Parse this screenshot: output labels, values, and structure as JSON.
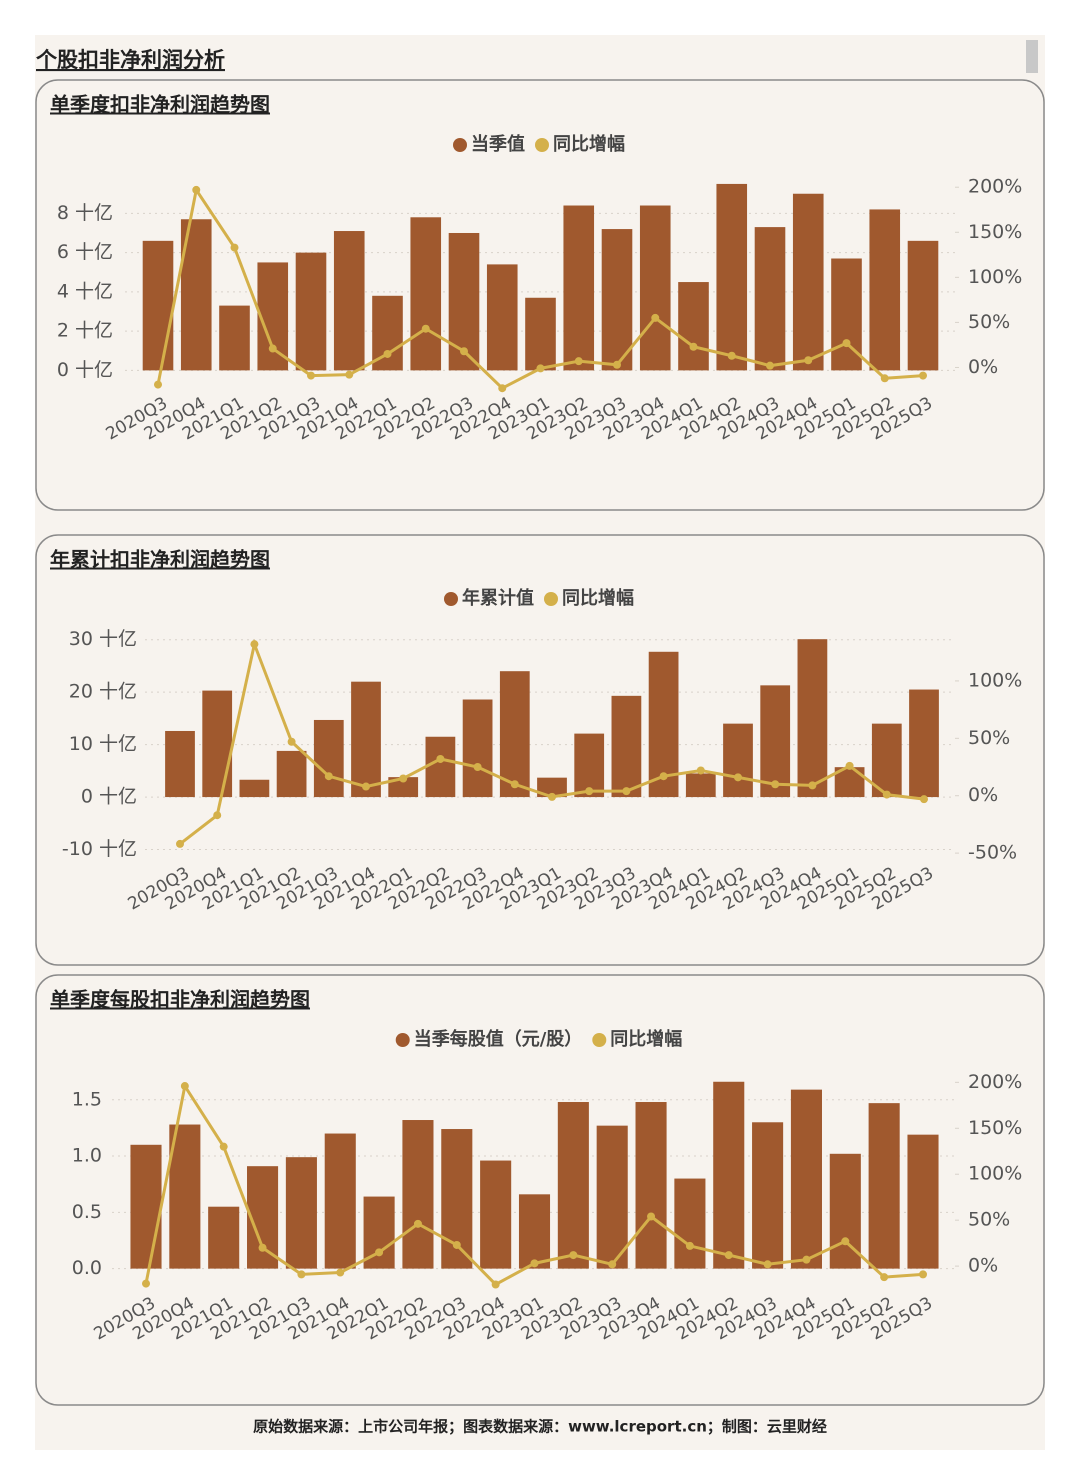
{
  "header": {
    "title": "个股扣非净利润分析"
  },
  "footer": "原始数据来源：上市公司年报；图表数据来源：www.lcreport.cn；制图：云里财经",
  "chart_data": [
    {
      "type": "bar",
      "title": "单季度扣非净利润趋势图",
      "categories": [
        "2020Q3",
        "2020Q4",
        "2021Q1",
        "2021Q2",
        "2021Q3",
        "2021Q4",
        "2022Q1",
        "2022Q2",
        "2022Q3",
        "2022Q4",
        "2023Q1",
        "2023Q2",
        "2023Q3",
        "2023Q4",
        "2024Q1",
        "2024Q2",
        "2024Q3",
        "2024Q4",
        "2025Q1",
        "2025Q2",
        "2025Q3"
      ],
      "series": [
        {
          "name": "当季值",
          "type": "bar",
          "color": "#a0592e",
          "values": [
            6.6,
            7.7,
            3.3,
            5.5,
            6.0,
            7.1,
            3.8,
            7.8,
            7.0,
            5.4,
            3.7,
            8.4,
            7.2,
            8.4,
            4.5,
            9.5,
            7.3,
            9.0,
            5.7,
            8.2,
            6.6
          ]
        },
        {
          "name": "同比增幅",
          "type": "line",
          "axis": "y2",
          "color": "#d4b04a",
          "values": [
            -19,
            197,
            133,
            21,
            -9,
            -8,
            15,
            43,
            18,
            -23,
            -1,
            7,
            3,
            55,
            23,
            13,
            2,
            8,
            27,
            -12,
            -9
          ]
        }
      ],
      "ylim": [
        -1,
        9.7
      ],
      "yticks": [
        {
          "value": 0,
          "label": "0 十亿"
        },
        {
          "value": 2,
          "label": "2 十亿"
        },
        {
          "value": 4,
          "label": "4 十亿"
        },
        {
          "value": 6,
          "label": "6 十亿"
        },
        {
          "value": 8,
          "label": "8 十亿"
        }
      ],
      "y2lim": [
        -25,
        208
      ],
      "y2ticks": [
        {
          "value": 0,
          "label": "0%"
        },
        {
          "value": 50,
          "label": "50%"
        },
        {
          "value": 100,
          "label": "100%"
        },
        {
          "value": 150,
          "label": "150%"
        },
        {
          "value": 200,
          "label": "200%"
        }
      ],
      "grid": true
    },
    {
      "type": "bar",
      "title": "年累计扣非净利润趋势图",
      "categories": [
        "2020Q3",
        "2020Q4",
        "2021Q1",
        "2021Q2",
        "2021Q3",
        "2021Q4",
        "2022Q1",
        "2022Q2",
        "2022Q3",
        "2022Q4",
        "2023Q1",
        "2023Q2",
        "2023Q3",
        "2023Q4",
        "2024Q1",
        "2024Q2",
        "2024Q3",
        "2024Q4",
        "2025Q1",
        "2025Q2",
        "2025Q3"
      ],
      "series": [
        {
          "name": "年累计值",
          "type": "bar",
          "color": "#a0592e",
          "values": [
            12.6,
            20.3,
            3.3,
            8.8,
            14.7,
            22.0,
            3.8,
            11.5,
            18.6,
            24.0,
            3.7,
            12.1,
            19.3,
            27.7,
            4.5,
            14.0,
            21.3,
            30.1,
            5.7,
            14.0,
            20.5
          ]
        },
        {
          "name": "同比增幅",
          "type": "line",
          "axis": "y2",
          "color": "#d4b04a",
          "values": [
            -42,
            -17,
            132,
            47,
            17,
            8,
            15,
            32,
            25,
            10,
            -1,
            4,
            4,
            17,
            22,
            16,
            10,
            9,
            26,
            1,
            -3
          ]
        }
      ],
      "ylim": [
        -12,
        30.9
      ],
      "yticks": [
        {
          "value": -10,
          "label": "-10 十亿"
        },
        {
          "value": 0,
          "label": "0 十亿"
        },
        {
          "value": 10,
          "label": "10 十亿"
        },
        {
          "value": 20,
          "label": "20 十亿"
        },
        {
          "value": 30,
          "label": "30 十亿"
        }
      ],
      "y2lim": [
        -56,
        140
      ],
      "y2ticks": [
        {
          "value": -50,
          "label": "-50%"
        },
        {
          "value": 0,
          "label": "0%"
        },
        {
          "value": 50,
          "label": "50%"
        },
        {
          "value": 100,
          "label": "100%"
        }
      ],
      "grid": true
    },
    {
      "type": "bar",
      "title": "单季度每股扣非净利润趋势图",
      "categories": [
        "2020Q3",
        "2020Q4",
        "2021Q1",
        "2021Q2",
        "2021Q3",
        "2021Q4",
        "2022Q1",
        "2022Q2",
        "2022Q3",
        "2022Q4",
        "2023Q1",
        "2023Q2",
        "2023Q3",
        "2023Q4",
        "2024Q1",
        "2024Q2",
        "2024Q3",
        "2024Q4",
        "2025Q1",
        "2025Q2",
        "2025Q3"
      ],
      "series": [
        {
          "name": "当季每股值（元/股）",
          "type": "bar",
          "color": "#a0592e",
          "values": [
            1.1,
            1.28,
            0.55,
            0.91,
            0.99,
            1.2,
            0.64,
            1.32,
            1.24,
            0.96,
            0.66,
            1.48,
            1.27,
            1.48,
            0.8,
            1.66,
            1.3,
            1.59,
            1.02,
            1.47,
            1.19
          ]
        },
        {
          "name": "同比增幅",
          "type": "line",
          "axis": "y2",
          "color": "#d4b04a",
          "values": [
            -19,
            196,
            130,
            20,
            -9,
            -7,
            15,
            46,
            23,
            -20,
            3,
            12,
            2,
            54,
            22,
            12,
            2,
            7,
            27,
            -12,
            -9
          ]
        }
      ],
      "ylim": [
        -0.19,
        1.72
      ],
      "yticks": [
        {
          "value": 0,
          "label": "0.0"
        },
        0.5,
        {
          "value": 1,
          "label": "1.0"
        },
        1.5
      ],
      "y2lim": [
        -26,
        208
      ],
      "y2ticks": [
        {
          "value": 0,
          "label": "0%"
        },
        {
          "value": 50,
          "label": "50%"
        },
        {
          "value": 100,
          "label": "100%"
        },
        {
          "value": 150,
          "label": "150%"
        },
        {
          "value": 200,
          "label": "200%"
        }
      ],
      "grid": true
    }
  ]
}
